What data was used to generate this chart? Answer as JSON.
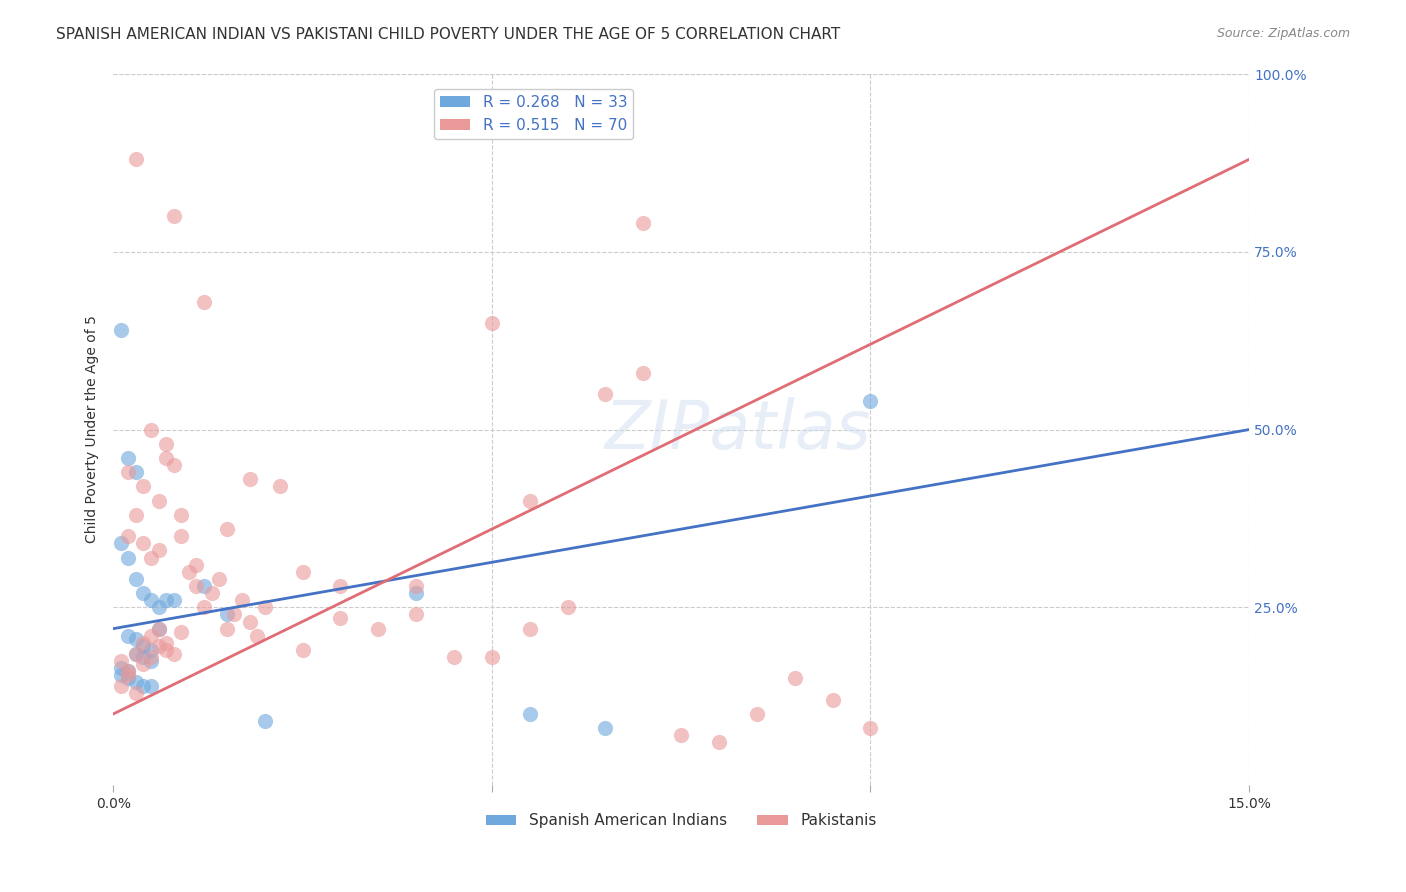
{
  "title": "SPANISH AMERICAN INDIAN VS PAKISTANI CHILD POVERTY UNDER THE AGE OF 5 CORRELATION CHART",
  "source": "Source: ZipAtlas.com",
  "xlabel_bottom": "",
  "ylabel": "Child Poverty Under the Age of 5",
  "xlim": [
    0.0,
    0.15
  ],
  "ylim": [
    0.0,
    1.0
  ],
  "xticks": [
    0.0,
    0.03,
    0.06,
    0.09,
    0.12,
    0.15
  ],
  "xticklabels": [
    "0.0%",
    "",
    "",
    "",
    "",
    "15.0%"
  ],
  "yticks_right": [
    0.0,
    0.25,
    0.5,
    0.75,
    1.0
  ],
  "ytick_right_labels": [
    "",
    "25.0%",
    "50.0%",
    "75.0%",
    "100.0%"
  ],
  "background_color": "#ffffff",
  "grid_color": "#cccccc",
  "watermark": "ZIPatlas",
  "legend_entries": [
    {
      "label": "R = 0.268   N = 33",
      "color": "#6fa8dc"
    },
    {
      "label": "R = 0.515   N = 70",
      "color": "#ea9999"
    }
  ],
  "blue_scatter_x": [
    0.001,
    0.002,
    0.003,
    0.001,
    0.002,
    0.003,
    0.004,
    0.005,
    0.006,
    0.002,
    0.003,
    0.004,
    0.005,
    0.003,
    0.004,
    0.005,
    0.001,
    0.002,
    0.001,
    0.002,
    0.003,
    0.004,
    0.065,
    0.02,
    0.015,
    0.012,
    0.008,
    0.007,
    0.006,
    0.005,
    0.04,
    0.1,
    0.055
  ],
  "blue_scatter_y": [
    0.64,
    0.46,
    0.44,
    0.34,
    0.32,
    0.29,
    0.27,
    0.26,
    0.22,
    0.21,
    0.205,
    0.195,
    0.19,
    0.185,
    0.18,
    0.175,
    0.165,
    0.16,
    0.155,
    0.15,
    0.145,
    0.14,
    0.08,
    0.09,
    0.24,
    0.28,
    0.26,
    0.26,
    0.25,
    0.14,
    0.27,
    0.54,
    0.1
  ],
  "pink_scatter_x": [
    0.001,
    0.002,
    0.001,
    0.003,
    0.002,
    0.004,
    0.003,
    0.005,
    0.004,
    0.006,
    0.005,
    0.007,
    0.006,
    0.008,
    0.007,
    0.009,
    0.002,
    0.003,
    0.004,
    0.005,
    0.006,
    0.007,
    0.008,
    0.009,
    0.01,
    0.011,
    0.012,
    0.013,
    0.014,
    0.015,
    0.016,
    0.017,
    0.018,
    0.019,
    0.02,
    0.025,
    0.03,
    0.035,
    0.04,
    0.045,
    0.05,
    0.055,
    0.06,
    0.065,
    0.07,
    0.075,
    0.08,
    0.085,
    0.09,
    0.095,
    0.003,
    0.008,
    0.012,
    0.05,
    0.005,
    0.007,
    0.002,
    0.018,
    0.022,
    0.009,
    0.015,
    0.004,
    0.006,
    0.011,
    0.025,
    0.03,
    0.04,
    0.055,
    0.07,
    0.1
  ],
  "pink_scatter_y": [
    0.14,
    0.16,
    0.175,
    0.13,
    0.155,
    0.17,
    0.185,
    0.18,
    0.2,
    0.22,
    0.21,
    0.19,
    0.195,
    0.185,
    0.2,
    0.215,
    0.35,
    0.38,
    0.42,
    0.32,
    0.4,
    0.48,
    0.45,
    0.35,
    0.3,
    0.28,
    0.25,
    0.27,
    0.29,
    0.22,
    0.24,
    0.26,
    0.23,
    0.21,
    0.25,
    0.19,
    0.235,
    0.22,
    0.28,
    0.18,
    0.18,
    0.4,
    0.25,
    0.55,
    0.58,
    0.07,
    0.06,
    0.1,
    0.15,
    0.12,
    0.88,
    0.8,
    0.68,
    0.65,
    0.5,
    0.46,
    0.44,
    0.43,
    0.42,
    0.38,
    0.36,
    0.34,
    0.33,
    0.31,
    0.3,
    0.28,
    0.24,
    0.22,
    0.79,
    0.08
  ],
  "blue_line_x": [
    0.0,
    0.15
  ],
  "blue_line_y": [
    0.22,
    0.5
  ],
  "pink_line_x": [
    0.0,
    0.15
  ],
  "pink_line_y": [
    0.1,
    0.88
  ],
  "blue_color": "#6fa8dc",
  "pink_color": "#ea9999",
  "blue_line_color": "#4472c4",
  "pink_line_color": "#e06c75",
  "scatter_size": 120,
  "scatter_alpha": 0.6,
  "title_fontsize": 11,
  "axis_label_fontsize": 10,
  "tick_fontsize": 10,
  "right_tick_color": "#4472c4"
}
